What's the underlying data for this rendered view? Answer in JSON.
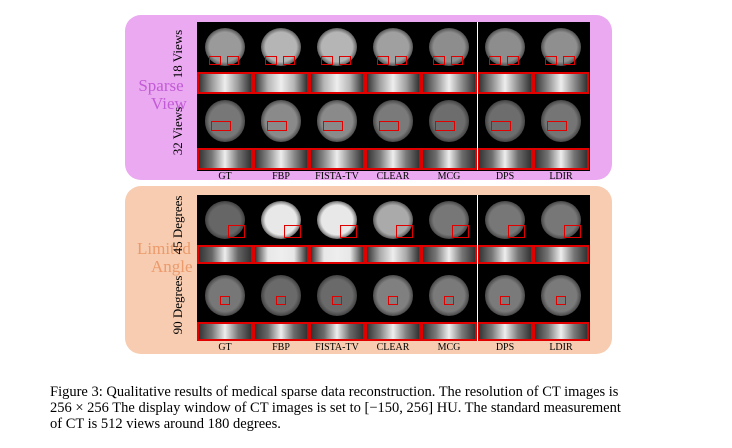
{
  "figure": {
    "columns": [
      "GT",
      "FBP",
      "FISTA-TV",
      "CLEAR",
      "MCG",
      "DPS",
      "LDIR"
    ],
    "groups": [
      {
        "label_line1": "Sparse",
        "label_line2": "View",
        "color": "#c25bd6",
        "bg": "#eaa9f1",
        "rows": [
          "18 Views",
          "32 Views"
        ]
      },
      {
        "label_line1": "Limited",
        "label_line2": "Angle",
        "color": "#eb9a6b",
        "bg": "#f7ccb0",
        "rows": [
          "45 Degrees",
          "90 Degrees"
        ]
      }
    ],
    "roi_color": "#e00000"
  },
  "caption": {
    "line1": "Figure 3: Qualitative results of medical sparse data reconstruction. The resolution of CT images is",
    "line2": "256 × 256 The display window of CT images is set to [−150, 256] HU. The standard measurement",
    "line3": "of CT is 512 views around 180 degrees."
  }
}
